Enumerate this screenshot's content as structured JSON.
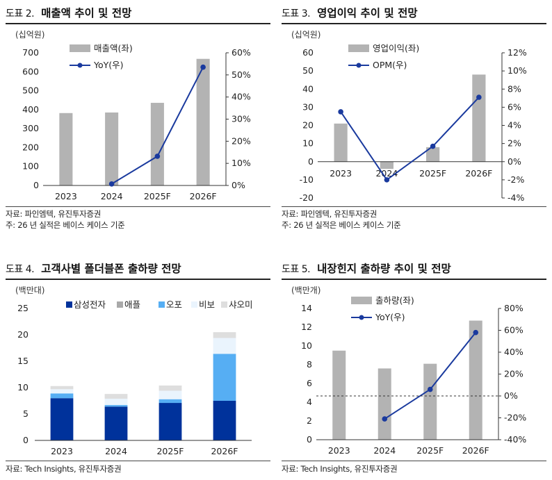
{
  "panels": {
    "p1": {
      "num": "도표 2.",
      "title": "매출액 추이 및 전망",
      "unit": "(십억원)",
      "source": "자료: 파인엠텍, 유진투자증권",
      "note": "주: 26 년 실적은 베이스 케이스 기준"
    },
    "p2": {
      "num": "도표 3.",
      "title": "영업이익 추이 및 전망",
      "unit": "(십억원)",
      "source": "자료: 파인엠텍, 유진투자증권",
      "note": "주: 26 년 실적은 베이스 케이스 기준"
    },
    "p3": {
      "num": "도표 4.",
      "title": "고객사별 폴더블폰 출하량 전망",
      "unit": "(백만대)",
      "source": "자료: Tech Insights, 유진투자증권"
    },
    "p4": {
      "num": "도표 5.",
      "title": "내장힌지 출하량 추이 및 전망",
      "unit": "(백만개)",
      "source": "자료: Tech Insights, 유진투자증권"
    }
  },
  "colors": {
    "bar_gray": "#b3b3b3",
    "line_navy": "#1a3a9e",
    "samsung": "#00329b",
    "apple": "#a9a9a9",
    "oppo": "#56aef3",
    "vivo": "#eaf4fd",
    "xiaomi": "#dedede"
  },
  "chart_data": [
    {
      "type": "bar",
      "categories": [
        "2023",
        "2024",
        "2025F",
        "2026F"
      ],
      "series": [
        {
          "name": "매출액(좌)",
          "type": "bar",
          "axis": "left",
          "values": [
            382,
            385,
            436,
            668
          ]
        },
        {
          "name": "YoY(우)",
          "type": "line",
          "axis": "right",
          "values": [
            null,
            0.7,
            13.2,
            53.5
          ]
        }
      ],
      "ylim": [
        0,
        700
      ],
      "yticks": [
        0,
        100,
        200,
        300,
        400,
        500,
        600,
        700
      ],
      "y2lim": [
        0,
        60
      ],
      "y2ticks": [
        "0%",
        "10%",
        "20%",
        "30%",
        "40%",
        "50%",
        "60%"
      ],
      "legend": "top-center",
      "grid": false
    },
    {
      "type": "bar",
      "categories": [
        "2023",
        "2024",
        "2025F",
        "2026F"
      ],
      "series": [
        {
          "name": "영업이익(좌)",
          "type": "bar",
          "axis": "left",
          "values": [
            21,
            -4,
            8,
            48
          ]
        },
        {
          "name": "OPM(우)",
          "type": "line",
          "axis": "right",
          "values": [
            5.5,
            -2.0,
            1.7,
            7.1
          ]
        }
      ],
      "ylim": [
        -20,
        60
      ],
      "yticks": [
        -20,
        -10,
        0,
        10,
        20,
        30,
        40,
        50,
        60
      ],
      "y2lim": [
        -4,
        12
      ],
      "y2ticks": [
        "-4%",
        "-2%",
        "0%",
        "2%",
        "4%",
        "6%",
        "8%",
        "10%",
        "12%"
      ],
      "legend": "top-center",
      "grid": false
    },
    {
      "type": "bar",
      "stacked": true,
      "categories": [
        "2023",
        "2024",
        "2025F",
        "2026F"
      ],
      "series": [
        {
          "name": "삼성전자",
          "values": [
            8.0,
            6.4,
            7.1,
            7.5
          ]
        },
        {
          "name": "애플",
          "values": [
            0,
            0,
            0,
            0
          ]
        },
        {
          "name": "오포",
          "values": [
            0.9,
            0.3,
            0.7,
            8.9
          ]
        },
        {
          "name": "비보",
          "values": [
            0.8,
            1.2,
            1.6,
            3.0
          ]
        },
        {
          "name": "샤오미",
          "values": [
            0.6,
            0.9,
            1.0,
            1.1
          ]
        }
      ],
      "ylim": [
        0,
        25
      ],
      "yticks": [
        0,
        5,
        10,
        15,
        20,
        25
      ],
      "legend": "top",
      "grid": false
    },
    {
      "type": "bar",
      "categories": [
        "2023",
        "2024",
        "2025F",
        "2026F"
      ],
      "series": [
        {
          "name": "출하량(좌)",
          "type": "bar",
          "axis": "left",
          "values": [
            9.5,
            7.6,
            8.1,
            12.7
          ]
        },
        {
          "name": "YoY(우)",
          "type": "line",
          "axis": "right",
          "values": [
            null,
            -21,
            6,
            58
          ]
        }
      ],
      "ylim": [
        0,
        14
      ],
      "yticks": [
        0,
        2,
        4,
        6,
        8,
        10,
        12,
        14
      ],
      "y2lim": [
        -40,
        80
      ],
      "y2ticks": [
        "-40%",
        "-20%",
        "0%",
        "20%",
        "40%",
        "60%",
        "80%"
      ],
      "legend": "top-center",
      "grid": false
    }
  ]
}
